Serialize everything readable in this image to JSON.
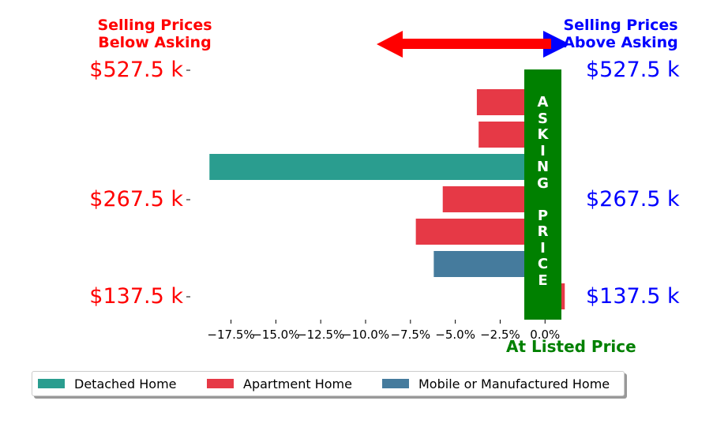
{
  "header": {
    "left_title": "Selling Prices\nBelow Asking",
    "right_title": "Selling Prices\nAbove Asking",
    "left_color": "#ff0000",
    "right_color": "#0000ff"
  },
  "price_labels": [
    "$527.5 k",
    "$267.5 k",
    "$137.5 k"
  ],
  "asking_band": {
    "letters": [
      "A",
      "S",
      "K",
      "I",
      "N",
      "G",
      "",
      "P",
      "R",
      "I",
      "C",
      "E"
    ],
    "color": "#008000"
  },
  "at_listed_label": "At Listed Price",
  "legend": [
    {
      "label": "Detached Home",
      "color": "#2a9d8f"
    },
    {
      "label": "Apartment Home",
      "color": "#e63946"
    },
    {
      "label": "Mobile or Manufactured Home",
      "color": "#457b9d"
    }
  ],
  "chart_data": {
    "type": "bar",
    "orientation": "horizontal",
    "xlim": [
      -18.8,
      1.0
    ],
    "x_ticks": [
      -17.5,
      -15.0,
      -12.5,
      -10.0,
      -7.5,
      -5.0,
      -2.5,
      0.0
    ],
    "x_tick_labels": [
      "−17.5%",
      "−15.0%",
      "−12.5%",
      "−10.0%",
      "−7.5%",
      "−5.0%",
      "−2.5%",
      "0.0%"
    ],
    "bars": [
      {
        "value": -3.8,
        "series": "Apartment Home"
      },
      {
        "value": -3.7,
        "series": "Apartment Home"
      },
      {
        "value": -18.7,
        "series": "Detached Home"
      },
      {
        "value": -5.7,
        "series": "Apartment Home"
      },
      {
        "value": -7.2,
        "series": "Apartment Home"
      },
      {
        "value": -6.2,
        "series": "Mobile or Manufactured Home"
      },
      {
        "value": 1.1,
        "series": "Apartment Home"
      }
    ],
    "legend_position": "bottom"
  }
}
